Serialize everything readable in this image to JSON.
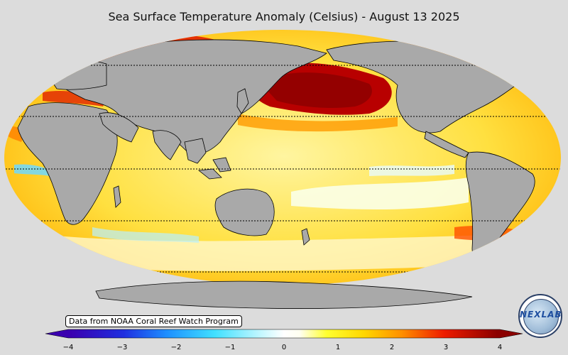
{
  "title": "Sea Surface Temperature Anomaly (Celsius) - August 13 2025",
  "source_note": "Data from NOAA Coral Reef Watch Program",
  "logo": {
    "text": "NEXLAB",
    "icon": "nexlab-globe-logo"
  },
  "colorbar": {
    "min": -4,
    "max": 4,
    "ticks": [
      "−4",
      "−3",
      "−2",
      "−1",
      "0",
      "1",
      "2",
      "3",
      "4"
    ],
    "tick_values": [
      -4,
      -3,
      -2,
      -1,
      0,
      1,
      2,
      3,
      4
    ],
    "stops": [
      {
        "v": -4,
        "c": "#3b00b0"
      },
      {
        "v": -3,
        "c": "#1f2fe0"
      },
      {
        "v": -2.2,
        "c": "#1e8fff"
      },
      {
        "v": -1.3,
        "c": "#40e0ff"
      },
      {
        "v": -0.4,
        "c": "#c8f8ff"
      },
      {
        "v": 0,
        "c": "#ffffff"
      },
      {
        "v": 0.3,
        "c": "#fffff0"
      },
      {
        "v": 0.8,
        "c": "#ffff30"
      },
      {
        "v": 1.5,
        "c": "#ffd700"
      },
      {
        "v": 2.2,
        "c": "#ff9000"
      },
      {
        "v": 3.0,
        "c": "#ee1c00"
      },
      {
        "v": 4,
        "c": "#8b0000"
      }
    ]
  },
  "colors": {
    "land": "#a9a9a9",
    "background": "#dcdcdc",
    "ocean_mean": "#ffe680"
  }
}
